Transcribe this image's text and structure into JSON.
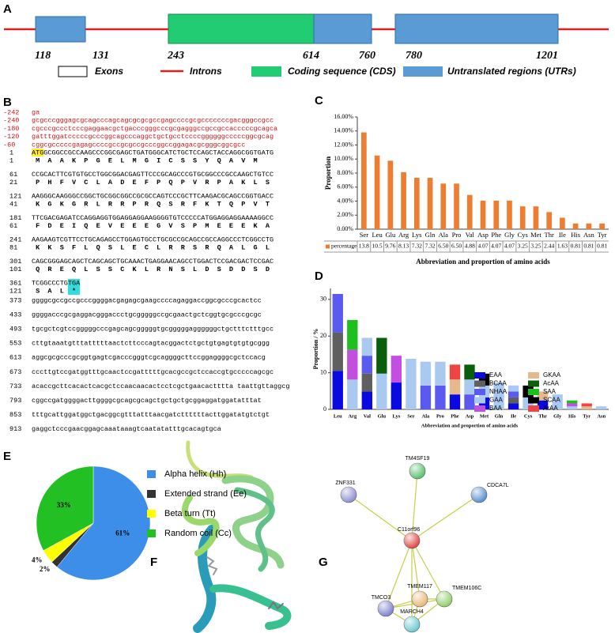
{
  "panel_labels": [
    "A",
    "B",
    "C",
    "D",
    "E",
    "F",
    "G"
  ],
  "gene_structure": {
    "positions": [
      118,
      131,
      243,
      614,
      760,
      780,
      1201
    ],
    "legend": [
      "Exons",
      "Introns",
      "Coding sequence (CDS)",
      "Untranslated regions (UTRs)"
    ]
  },
  "sequence": {
    "upstream": [
      {
        "number": -242,
        "text": "ga"
      },
      {
        "number": -240,
        "text": "gcgcccgggagcgcagcccagcagcgcgcgccgagccccgcgcccccccgacgggccgcc"
      },
      {
        "number": -180,
        "text": "cgcccgccctcccgaggaacgctgacccgggcccgcgagggccgccgccacccccgcagca"
      },
      {
        "number": -120,
        "text": "gatttggatcccccgcccggcagcccaggctgctgcctccccggggggcccccggcgcag"
      },
      {
        "number": -60,
        "text": "cggcgcccccgagagccccgccgcgccgcccggccggagacgcgggcggcgcc"
      }
    ],
    "coding": [
      {
        "nt_number": 1,
        "nt": "ATGGCGGCCGCCAAGCCCGGCGAGCTGATGGGCATCTGCTCCAGCTACCAGGCGGTGATG",
        "aa_number": 1,
        "aa": "M  A  A  K  P  G  E  L  M  G  I  C  S  S  Y  Q  A  V  M"
      },
      {
        "nt_number": 61,
        "nt": "CCGCACTTCGTGTGCCTGGCGGACGAGTTCCCGCAGCCCGTGCGGCCCGCCAAGCTGTCC",
        "aa_number": 21,
        "aa": "P  H  F  V  C  L  A  D  E  F  P  Q  P  V  R  P  A  K  L  S"
      },
      {
        "nt_number": 121,
        "nt": "AAGGGCAAGGGCCGGCTGCGGCGGCCGCGCCAGTCCCGCTTCAAGACGCAGCCGGTGACC",
        "aa_number": 41,
        "aa": "K  G  K  G  R  L  R  R  P  R  Q  S  R  F  K  T  Q  P  V  T"
      },
      {
        "nt_number": 181,
        "nt": "TTCGACGAGATCCAGGAGGTGGAGGAGGAAGGGGTGTCCCCCATGGAGGAGGAAAAGGCC",
        "aa_number": 61,
        "aa": "F  D  E  I  Q  E  V  E  E  E  G  V  S  P  M  E  E  E  K  A"
      },
      {
        "nt_number": 241,
        "nt": "AAGAAGTCGTTCCTGCAGAGCCTGGAGTGCCTGCGCCGCAGCCGCCAGGCCCTCGGCCTG",
        "aa_number": 81,
        "aa": "K  K  S  F  L  Q  S  L  E  C  L  R  R  S  R  Q  A  L  G  L"
      },
      {
        "nt_number": 301,
        "nt": "CAGCGGGAGCAGCTCAGCAGCTGCAAACTGAGGAACAGCCTGGACTCCGACGACTCCGAC",
        "aa_number": 101,
        "aa": "Q  R  E  Q  L  S  S  C  K  L  R  N  S  L  D  S  D  D  S  D"
      },
      {
        "nt_number": 361,
        "nt": "TCGGCCCTGTGA",
        "aa_number": 121,
        "aa": "S  A  L  *"
      }
    ],
    "downstream": [
      {
        "number": 373,
        "text": "ggggcgccgccgcccggggacgagagcgaagccccagaggaccggcgcccgcactcc"
      },
      {
        "number": 433,
        "text": "ggggacccgcgaggacgggaccctgcgggggccgcgaactgctcggtgcgcccgcgc"
      },
      {
        "number": 493,
        "text": "tgcgctcgtccgggggcccgagcagcgggggtgcgggggaggggggctgctttctttgcc"
      },
      {
        "number": 553,
        "text": "cttgtaaatgtttatttttaactcttcccagtacggactctgctgtgagtgtgtgcggg"
      },
      {
        "number": 613,
        "text": "aggcgcgcccgcggtgagtcgacccgggtcgcaggggcttccggaggggcgctccacg"
      },
      {
        "number": 673,
        "text": "cccttgtccgatggtttgcaactccgatttttgcacgccgctccaccgtgcccccagcgc"
      },
      {
        "number": 733,
        "text": "acaccgcttcacactcacgctccaacaacactcctcgctgaacactttta taattgttaggcg"
      },
      {
        "number": 793,
        "text": "cggccgatggggacttggggcgcagcgcagctgctgctgcggaggatggatatttat"
      },
      {
        "number": 853,
        "text": "tttgcattggatggctgacggcgtttatttaacgatcttttttacttggatatgtctgt"
      },
      {
        "number": 913,
        "text": "gaggctcccgaacggagcaaataaagtcaatatatttgcacagtgca"
      }
    ]
  },
  "chart_data": [
    {
      "type": "bar",
      "y_label": "Proportion",
      "x_label": "Abbreviation and proportion of amino acids",
      "categories": [
        "Ser",
        "Leu",
        "Glu",
        "Arg",
        "Lys",
        "Gln",
        "Ala",
        "Pro",
        "Val",
        "Asp",
        "Phe",
        "Gly",
        "Cys",
        "Met",
        "Thr",
        "Ile",
        "His",
        "Asn",
        "Tyr"
      ],
      "series": [
        {
          "name": "percentage",
          "color": "#ed7d31",
          "values": [
            13.8,
            10.5,
            9.76,
            8.13,
            7.32,
            7.32,
            6.5,
            6.5,
            4.88,
            4.07,
            4.07,
            4.07,
            3.25,
            3.25,
            2.44,
            1.63,
            0.81,
            0.81,
            0.81
          ],
          "value_labels": [
            "13.8",
            "10.5",
            "9.76",
            "8.13",
            "7.32",
            "7.32",
            "6.50",
            "6.50",
            "4.88",
            "4.07",
            "4.07",
            "4.07",
            "3.25",
            "3.25",
            "2.44",
            "1.63",
            "0.81",
            "0.81",
            "0.81"
          ]
        }
      ],
      "ylim": [
        0,
        16
      ],
      "yticks": [
        {
          "value": 0,
          "label": "0.00%"
        },
        {
          "value": 2,
          "label": "2.00%"
        },
        {
          "value": 4,
          "label": "4.00%"
        },
        {
          "value": 6,
          "label": "6.00%"
        },
        {
          "value": 8,
          "label": "8.00%"
        },
        {
          "value": 10,
          "label": "10.00%"
        },
        {
          "value": 12,
          "label": "12.00%"
        },
        {
          "value": 14,
          "label": "14.00%"
        },
        {
          "value": 16,
          "label": "16.00%"
        }
      ],
      "grid": false
    },
    {
      "type": "stacked_bar",
      "y_label": "Proportion / %",
      "x_label": "Abbreviation and proportion of amino acids",
      "categories": [
        "Leu",
        "Arg",
        "Val",
        "Glu",
        "Lys",
        "Ser",
        "Ala",
        "Pro",
        "Phe",
        "Asp",
        "Met",
        "Gln",
        "Ile",
        "Cys",
        "Thr",
        "Gly",
        "His",
        "Tyr",
        "Asn"
      ],
      "series": [
        {
          "name": "EAA",
          "color": "#0a0ae0",
          "values": [
            10.5,
            null,
            4.88,
            null,
            7.32,
            null,
            null,
            null,
            4.07,
            null,
            3.25,
            null,
            1.63,
            null,
            2.44,
            null,
            null,
            null,
            null
          ]
        },
        {
          "name": "BCAA",
          "color": "#5f5f5f",
          "values": [
            10.5,
            null,
            4.88,
            null,
            null,
            null,
            null,
            null,
            null,
            null,
            null,
            null,
            1.63,
            null,
            null,
            null,
            null,
            null,
            null
          ]
        },
        {
          "name": "NHAA",
          "color": "#5a5af0",
          "values": [
            10.5,
            null,
            4.88,
            null,
            null,
            null,
            6.5,
            6.5,
            null,
            4.07,
            null,
            null,
            1.63,
            null,
            null,
            null,
            null,
            null,
            null
          ]
        },
        {
          "name": "GAA",
          "color": "#a9c9f0",
          "values": [
            null,
            8.13,
            4.88,
            9.76,
            null,
            13.8,
            6.5,
            6.5,
            null,
            4.07,
            3.25,
            7.32,
            1.63,
            3.25,
            null,
            4.07,
            0.81,
            null,
            0.81
          ]
        },
        {
          "name": "BAA",
          "color": "#c24fe0",
          "values": [
            null,
            8.13,
            null,
            null,
            7.32,
            null,
            null,
            null,
            null,
            null,
            null,
            null,
            null,
            null,
            null,
            null,
            0.81,
            null,
            null
          ]
        },
        {
          "name": "GKAA",
          "color": "#e6b88e",
          "values": [
            null,
            null,
            null,
            null,
            null,
            null,
            null,
            null,
            4.07,
            null,
            null,
            null,
            null,
            null,
            2.44,
            null,
            null,
            0.81,
            null
          ]
        },
        {
          "name": "AcAA",
          "color": "#0b5e0b",
          "values": [
            null,
            null,
            null,
            9.76,
            null,
            null,
            null,
            null,
            null,
            4.07,
            null,
            null,
            null,
            null,
            null,
            null,
            null,
            null,
            null
          ]
        },
        {
          "name": "SAA",
          "color": "#1fbf1f",
          "values": [
            null,
            8.13,
            null,
            null,
            null,
            null,
            null,
            null,
            null,
            null,
            null,
            null,
            null,
            null,
            null,
            null,
            0.81,
            null,
            null
          ]
        },
        {
          "name": "SCAA",
          "color": "#000000",
          "values": [
            null,
            null,
            null,
            null,
            null,
            null,
            null,
            null,
            null,
            null,
            3.25,
            null,
            null,
            3.25,
            null,
            null,
            null,
            null,
            null
          ]
        },
        {
          "name": "ArAA",
          "color": "#f04444",
          "values": [
            null,
            null,
            null,
            null,
            null,
            null,
            null,
            null,
            4.07,
            null,
            null,
            null,
            null,
            null,
            null,
            null,
            null,
            0.81,
            null
          ]
        }
      ],
      "ylim": [
        0,
        33
      ],
      "yticks": [
        0,
        10,
        20,
        30
      ],
      "legend": "right"
    },
    {
      "type": "pie",
      "labels": [
        "Alpha helix (Hh)",
        "Extended strand (Ee)",
        "Beta turn (Tt)",
        "Random coil (Cc)"
      ],
      "values": [
        61,
        2,
        4,
        33
      ],
      "value_labels": [
        "61%",
        "2%",
        "4%",
        "33%"
      ],
      "colors": [
        "#3d8ee8",
        "#333333",
        "#ffff00",
        "#22c022"
      ]
    }
  ],
  "network": {
    "nodes": [
      "TM4SF19",
      "ZNF331",
      "CDCA7L",
      "C11orf96",
      "TMEM117",
      "TMCO3",
      "TMEM106C",
      "MARCH4"
    ]
  }
}
